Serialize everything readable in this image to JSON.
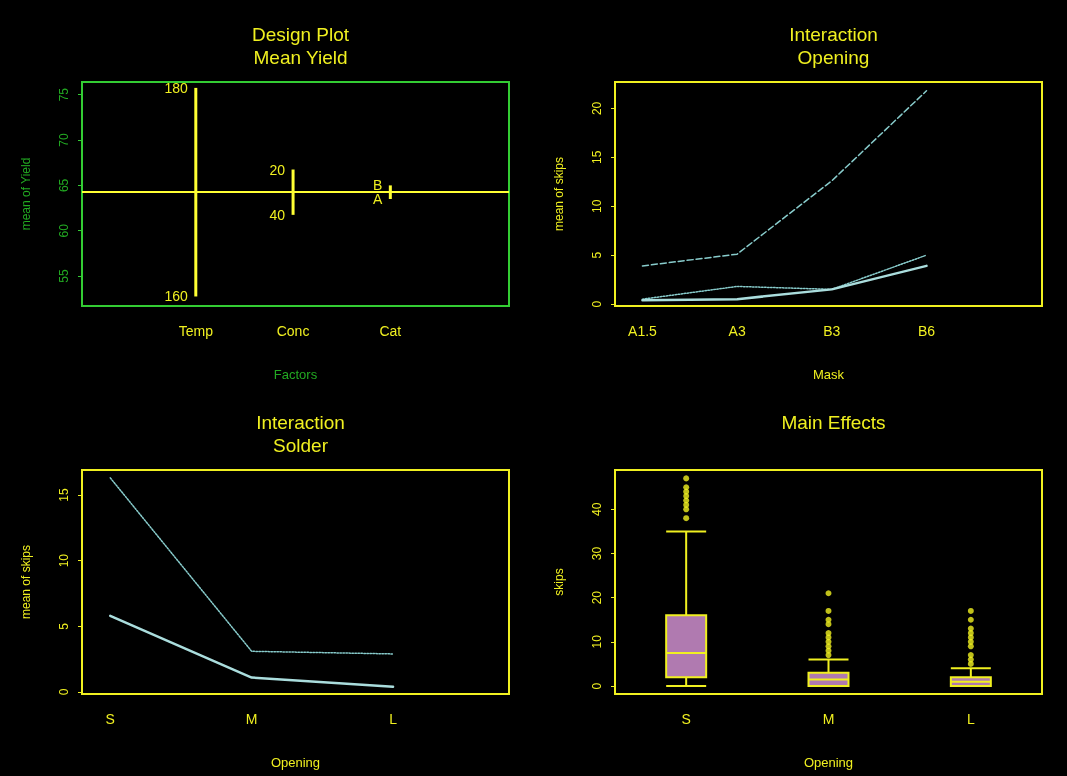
{
  "chart_data": [
    {
      "type": "bar",
      "title": "Design Plot",
      "subtitle": "Mean Yield",
      "xlabel": "Factors",
      "ylabel": "mean of Yield",
      "categories": [
        "Temp",
        "Conc",
        "Cat"
      ],
      "series": [
        {
          "color": "#ffff33",
          "base": [
            52.75,
            61.75,
            63.5
          ],
          "values": [
            23,
            5,
            1.5
          ]
        }
      ],
      "ylim": [
        51.7,
        76.4
      ],
      "yticks": [
        55,
        60,
        65,
        70,
        75
      ],
      "ref_lines": [
        {
          "axis": "y",
          "value": 64.25,
          "color": "#ffff33"
        }
      ],
      "annotations": [
        {
          "text": "180",
          "x": "Temp",
          "y": 75.75
        },
        {
          "text": "160",
          "x": "Temp",
          "y": 52.75
        },
        {
          "text": "20",
          "x": "Conc",
          "y": 66.75
        },
        {
          "text": "40",
          "x": "Conc",
          "y": 61.75
        },
        {
          "text": "B",
          "x": "Cat",
          "y": 65
        },
        {
          "text": "A",
          "x": "Cat",
          "y": 63.5
        }
      ]
    },
    {
      "type": "line",
      "title": "Interaction",
      "subtitle": "Opening",
      "xlabel": "Mask",
      "ylabel": "mean of skips",
      "categories": [
        "A1.5",
        "A3",
        "B3",
        "B6"
      ],
      "series": [
        {
          "color": "#88cccc",
          "line_style": "dashed",
          "values": [
            3.9,
            5.1,
            12.6,
            21.8
          ]
        },
        {
          "color": "#88cccc",
          "line_style": "dotted",
          "values": [
            0.5,
            1.8,
            1.5,
            5.0
          ]
        },
        {
          "color": "#aadddd",
          "line_style": "solid",
          "values": [
            0.4,
            0.5,
            1.5,
            3.9
          ]
        }
      ],
      "ylim": [
        -0.2,
        22.7
      ],
      "yticks": [
        0,
        5,
        10,
        15,
        20
      ]
    },
    {
      "type": "line",
      "title": "Interaction",
      "subtitle": "Solder",
      "xlabel": "Opening",
      "ylabel": "mean of skips",
      "categories": [
        "S",
        "M",
        "L"
      ],
      "series": [
        {
          "color": "#88cccc",
          "line_style": "dotted",
          "values": [
            16.3,
            3.1,
            2.9
          ]
        },
        {
          "color": "#aadddd",
          "line_style": "solid",
          "values": [
            5.8,
            1.1,
            0.4
          ]
        }
      ],
      "ylim": [
        -0.15,
        16.9
      ],
      "yticks": [
        0,
        5,
        10,
        15
      ]
    },
    {
      "type": "box",
      "title": "Main Effects",
      "xlabel": "Opening",
      "ylabel": "skips",
      "categories": [
        "S",
        "M",
        "L"
      ],
      "series": [
        {
          "color": "#b07ab0",
          "boxes": [
            {
              "low": 0,
              "q1": 2,
              "median": 7.5,
              "q3": 16,
              "high": 35,
              "outliers": [
                38,
                40,
                41,
                42,
                43,
                44,
                45,
                47
              ]
            },
            {
              "low": 0,
              "q1": 0,
              "median": 1.5,
              "q3": 3,
              "high": 6,
              "outliers": [
                7,
                8,
                9,
                10,
                11,
                12,
                14,
                15,
                17,
                21
              ]
            },
            {
              "low": 0,
              "q1": 0,
              "median": 1,
              "q3": 2,
              "high": 4,
              "outliers": [
                5,
                6,
                7,
                9,
                10,
                11,
                12,
                13,
                15,
                17
              ]
            }
          ]
        }
      ],
      "ylim": [
        -1.8,
        48.9
      ],
      "yticks": [
        0,
        10,
        20,
        30,
        40
      ]
    }
  ]
}
